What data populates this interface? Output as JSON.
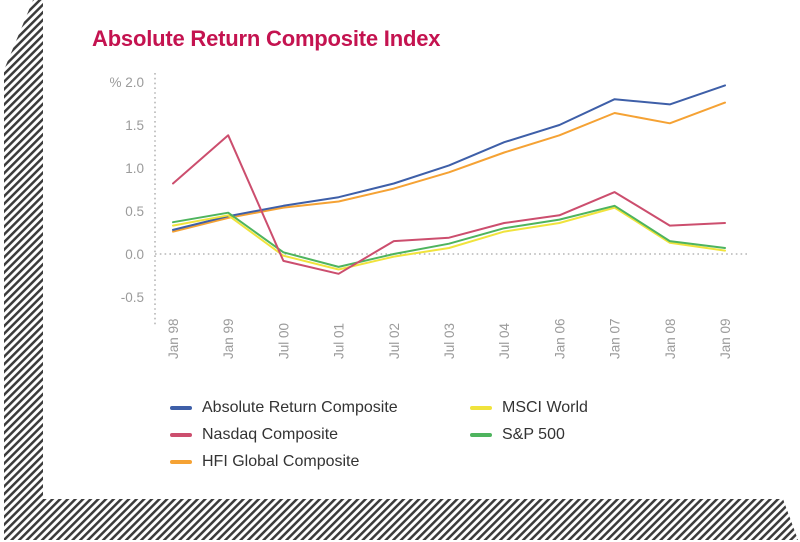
{
  "title": "Absolute Return Composite Index",
  "colors": {
    "title": "#c41350",
    "axis_text": "#9b9b9b",
    "axis_dots": "#a6a6a6",
    "legend_text": "#333333",
    "hatch": "#3b3b3b",
    "background": "#ffffff"
  },
  "chart_data": {
    "type": "line",
    "title": "Absolute Return Composite Index",
    "unit": "%",
    "categories": [
      "Jan 98",
      "Jan 99",
      "Jul 00",
      "Jul 01",
      "Jul 02",
      "Jul 03",
      "Jul 04",
      "Jan 06",
      "Jan 07",
      "Jan 08",
      "Jan 09"
    ],
    "series": [
      {
        "name": "Absolute Return Composite",
        "color": "#3e5fa8",
        "values": [
          0.28,
          0.44,
          0.56,
          0.66,
          0.82,
          1.03,
          1.3,
          1.5,
          1.8,
          1.74,
          1.96
        ]
      },
      {
        "name": "Nasdaq Composite",
        "color": "#cc4e6e",
        "values": [
          0.82,
          1.38,
          -0.08,
          -0.23,
          0.15,
          0.19,
          0.36,
          0.45,
          0.72,
          0.33,
          0.36
        ]
      },
      {
        "name": "HFI Global Composite",
        "color": "#f5a234",
        "values": [
          0.26,
          0.42,
          0.54,
          0.61,
          0.76,
          0.95,
          1.18,
          1.38,
          1.64,
          1.52,
          1.76
        ]
      },
      {
        "name": "MSCI World",
        "color": "#f0e33c",
        "values": [
          0.33,
          0.45,
          -0.02,
          -0.18,
          -0.03,
          0.07,
          0.26,
          0.36,
          0.54,
          0.13,
          0.04
        ]
      },
      {
        "name": "S&P 500",
        "color": "#4eb45e",
        "values": [
          0.37,
          0.48,
          0.02,
          -0.15,
          0.0,
          0.12,
          0.3,
          0.4,
          0.56,
          0.15,
          0.07
        ]
      }
    ],
    "yticks": {
      "values": [
        2.0,
        1.5,
        1.0,
        0.5,
        0.0,
        -0.5
      ],
      "labels": [
        "% 2.0",
        "1.5",
        "1.0",
        "0.5",
        "0.0",
        "-0.5"
      ]
    },
    "ylim": [
      -0.5,
      2.0
    ],
    "grid": "dotted zero line and dotted y-axis only",
    "x_tick_rotation": 90,
    "legend_position": "bottom"
  },
  "legend": {
    "columns": [
      [
        0,
        1,
        2
      ],
      [
        3,
        4
      ]
    ]
  }
}
